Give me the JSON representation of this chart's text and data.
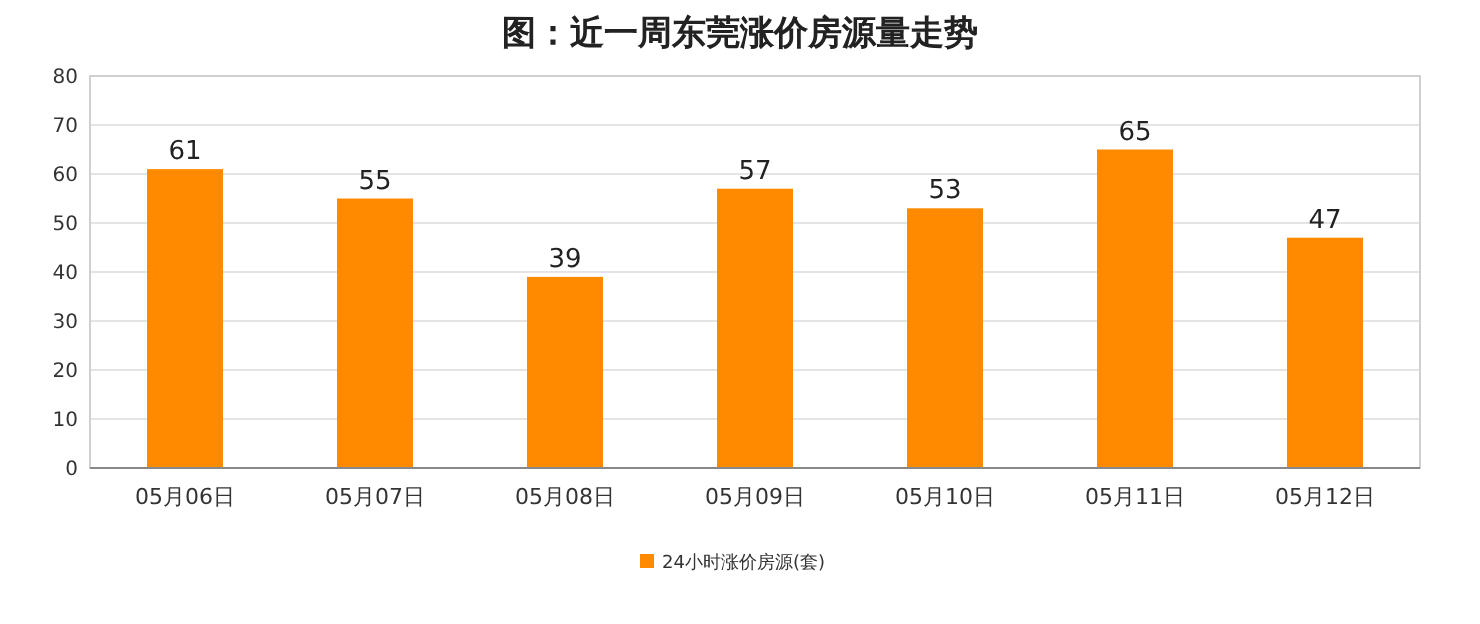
{
  "chart_data": {
    "type": "bar",
    "title": "图：近一周东莞涨价房源量走势",
    "categories": [
      "05月06日",
      "05月07日",
      "05月08日",
      "05月09日",
      "05月10日",
      "05月11日",
      "05月12日"
    ],
    "series": [
      {
        "name": "24小时涨价房源(套)",
        "color": "#ff8a00",
        "values": [
          61,
          55,
          39,
          57,
          53,
          65,
          47
        ]
      }
    ],
    "ylim": [
      0,
      80
    ],
    "yticks": [
      0,
      10,
      20,
      30,
      40,
      50,
      60,
      70,
      80
    ],
    "grid": "y",
    "legend": "bottom",
    "data_labels": true
  }
}
